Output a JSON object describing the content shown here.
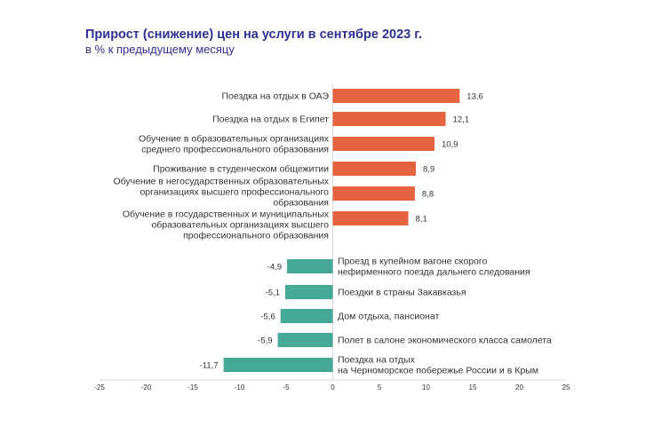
{
  "chart_data": {
    "type": "bar",
    "orientation": "horizontal",
    "title": "Прирост (снижение) цен на услуги в сентябре 2023 г.",
    "subtitle": "в % к предыдущему месяцу",
    "xlim": [
      -25,
      25
    ],
    "xticks": [
      "-25",
      "-20",
      "-15",
      "-10",
      "-5",
      "0",
      "5",
      "10",
      "15",
      "20",
      "25"
    ],
    "grid": false,
    "colors": {
      "positive": "#e5643f",
      "negative": "#45a996",
      "title": "#2e3192"
    },
    "categories": [
      {
        "label": [
          "Поездка на отдых в ОАЭ"
        ],
        "value": 13.6,
        "value_label": "13,6"
      },
      {
        "label": [
          "Поездка на отдых в Египет"
        ],
        "value": 12.1,
        "value_label": "12,1"
      },
      {
        "label": [
          "Обучение в образовательных организациях",
          "среднего профессионального образования"
        ],
        "value": 10.9,
        "value_label": "10,9"
      },
      {
        "label": [
          "Проживание в студенческом общежитии"
        ],
        "value": 8.9,
        "value_label": "8,9"
      },
      {
        "label": [
          "Обучение в негосударственных образовательных",
          "организациях высшего профессионального",
          "образования"
        ],
        "value": 8.8,
        "value_label": "8,8"
      },
      {
        "label": [
          "Обучение в государственных и муниципальных",
          "образовательных организациях высшего",
          "профессионального образования"
        ],
        "value": 8.1,
        "value_label": "8,1"
      },
      {
        "label": [
          "Проезд в купейном вагоне скорого",
          "нефирменного поезда дальнего следования"
        ],
        "value": -4.9,
        "value_label": "-4,9"
      },
      {
        "label": [
          "Поездки в страны Закавказья"
        ],
        "value": -5.1,
        "value_label": "-5,1"
      },
      {
        "label": [
          "Дом отдыха,  пансионат"
        ],
        "value": -5.6,
        "value_label": "-5,6"
      },
      {
        "label": [
          "Полет в салоне экономического класса самолета"
        ],
        "value": -5.9,
        "value_label": "-5,9"
      },
      {
        "label": [
          "Поездка на отдых",
          "на Черноморское побережье России и в Крым"
        ],
        "value": -11.7,
        "value_label": "-11,7"
      }
    ]
  }
}
